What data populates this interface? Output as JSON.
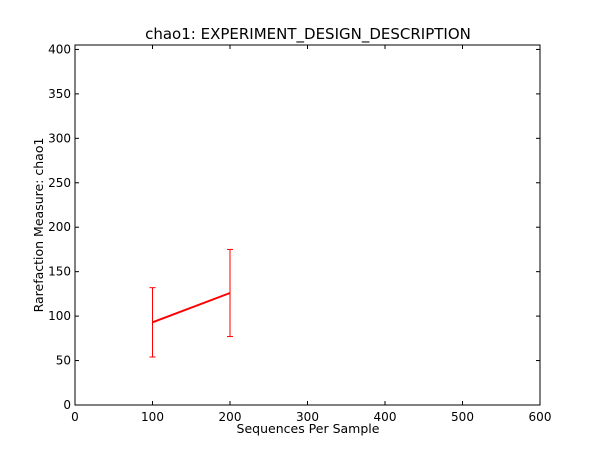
{
  "chart_data": {
    "type": "line",
    "title": "chao1: EXPERIMENT_DESIGN_DESCRIPTION",
    "xlabel": "Sequences Per Sample",
    "ylabel": "Rarefaction Measure: chao1",
    "xlim": [
      0,
      600
    ],
    "ylim": [
      0,
      405
    ],
    "xticks": [
      0,
      100,
      200,
      300,
      400,
      500,
      600
    ],
    "yticks": [
      0,
      50,
      100,
      150,
      200,
      250,
      300,
      350,
      400
    ],
    "grid": false,
    "legend": "none",
    "series": [
      {
        "color": "#ff0000",
        "x": [
          100,
          200
        ],
        "y": [
          93,
          126
        ],
        "err_low": [
          54,
          77
        ],
        "err_high": [
          132,
          175
        ]
      }
    ]
  }
}
